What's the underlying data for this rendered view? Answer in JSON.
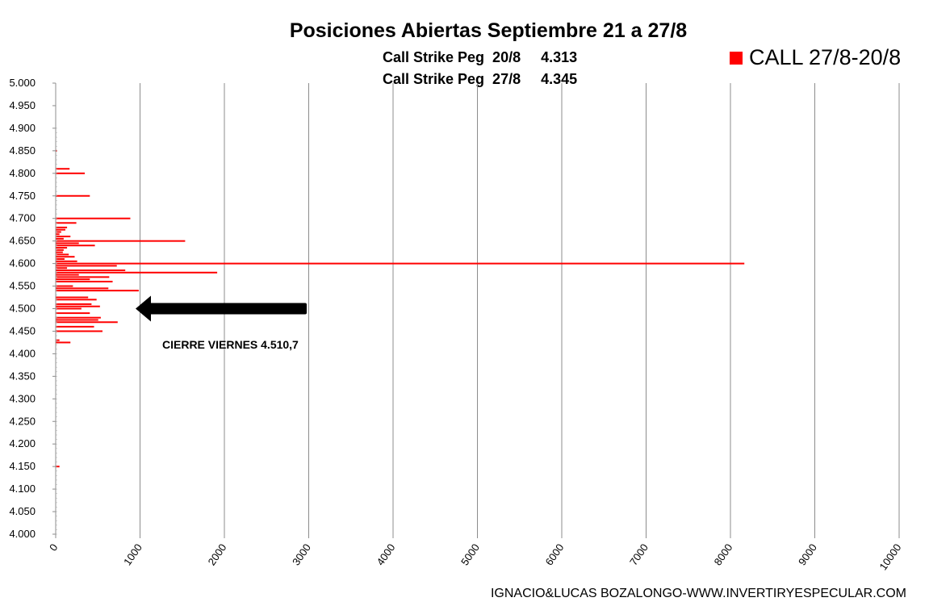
{
  "header": {
    "title": "Posiciones Abiertas Septiembre 21 a 27/8",
    "line1": "Call Strike Peg  20/8     4.313",
    "line2": "Call Strike Peg  27/8     4.345"
  },
  "legend": {
    "label": "CALL 27/8-20/8",
    "color": "#ff0000"
  },
  "annotation": {
    "text": "CIERRE VIERNES 4.510,7",
    "strike": 4500
  },
  "footer": {
    "text": "IGNACIO&LUCAS BOZALONGO-WWW.INVERTIRYESPECULAR.COM"
  },
  "chart_data": {
    "type": "bar",
    "orientation": "horizontal",
    "title": "Posiciones Abiertas Septiembre 21 a 27/8",
    "xlim": [
      0,
      10000
    ],
    "ylim": [
      4000,
      5000
    ],
    "x_ticks": [
      "0",
      "1000",
      "2000",
      "3000",
      "4000",
      "5000",
      "6000",
      "7000",
      "8000",
      "9000",
      "10000"
    ],
    "y_ticks": [
      "4.000",
      "4.050",
      "4.100",
      "4.150",
      "4.200",
      "4.250",
      "4.300",
      "4.350",
      "4.400",
      "4.450",
      "4.500",
      "4.550",
      "4.600",
      "4.650",
      "4.700",
      "4.750",
      "4.800",
      "4.850",
      "4.900",
      "4.950",
      "5.000"
    ],
    "grid": "vertical",
    "legend_position": "top-right",
    "series": [
      {
        "name": "CALL 27/8-20/8",
        "color": "#ff0000",
        "points": [
          {
            "strike": 4150,
            "value": 40
          },
          {
            "strike": 4425,
            "value": 170
          },
          {
            "strike": 4430,
            "value": 40
          },
          {
            "strike": 4450,
            "value": 550
          },
          {
            "strike": 4460,
            "value": 450
          },
          {
            "strike": 4470,
            "value": 730
          },
          {
            "strike": 4475,
            "value": 500
          },
          {
            "strike": 4480,
            "value": 530
          },
          {
            "strike": 4490,
            "value": 400
          },
          {
            "strike": 4500,
            "value": 300
          },
          {
            "strike": 4505,
            "value": 520
          },
          {
            "strike": 4510,
            "value": 420
          },
          {
            "strike": 4520,
            "value": 480
          },
          {
            "strike": 4525,
            "value": 380
          },
          {
            "strike": 4540,
            "value": 980
          },
          {
            "strike": 4545,
            "value": 620
          },
          {
            "strike": 4550,
            "value": 200
          },
          {
            "strike": 4560,
            "value": 670
          },
          {
            "strike": 4565,
            "value": 400
          },
          {
            "strike": 4570,
            "value": 630
          },
          {
            "strike": 4575,
            "value": 270
          },
          {
            "strike": 4580,
            "value": 1910
          },
          {
            "strike": 4585,
            "value": 820
          },
          {
            "strike": 4590,
            "value": 130
          },
          {
            "strike": 4595,
            "value": 720
          },
          {
            "strike": 4600,
            "value": 8160
          },
          {
            "strike": 4605,
            "value": 250
          },
          {
            "strike": 4610,
            "value": 100
          },
          {
            "strike": 4615,
            "value": 220
          },
          {
            "strike": 4620,
            "value": 150
          },
          {
            "strike": 4625,
            "value": 80
          },
          {
            "strike": 4630,
            "value": 90
          },
          {
            "strike": 4635,
            "value": 130
          },
          {
            "strike": 4640,
            "value": 460
          },
          {
            "strike": 4645,
            "value": 270
          },
          {
            "strike": 4650,
            "value": 1530
          },
          {
            "strike": 4655,
            "value": 90
          },
          {
            "strike": 4660,
            "value": 170
          },
          {
            "strike": 4665,
            "value": 40
          },
          {
            "strike": 4670,
            "value": 60
          },
          {
            "strike": 4675,
            "value": 110
          },
          {
            "strike": 4680,
            "value": 130
          },
          {
            "strike": 4690,
            "value": 240
          },
          {
            "strike": 4700,
            "value": 880
          },
          {
            "strike": 4750,
            "value": 400
          },
          {
            "strike": 4800,
            "value": 340
          },
          {
            "strike": 4810,
            "value": 160
          },
          {
            "strike": 4850,
            "value": 10
          }
        ]
      }
    ]
  }
}
